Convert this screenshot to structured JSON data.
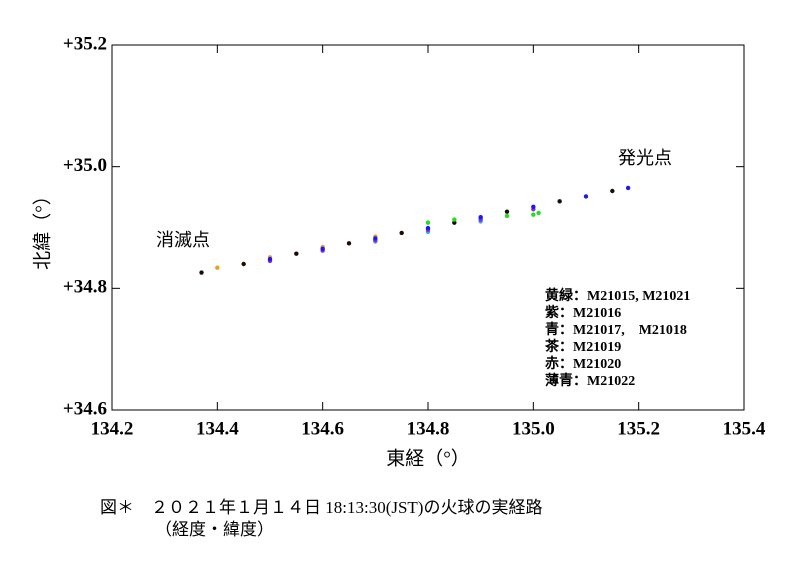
{
  "chart_data": {
    "type": "scatter",
    "xlabel": "東経（°）",
    "ylabel": "北緯（°）",
    "xlim": [
      134.2,
      135.4
    ],
    "xticks": [
      134.2,
      134.4,
      134.6,
      134.8,
      {
        "value": 135,
        "label": "135.0"
      },
      135.2,
      135.4
    ],
    "ylim": [
      34.6,
      35.2
    ],
    "yticks": [
      {
        "value": 34.6,
        "label": "+34.6"
      },
      {
        "value": 34.8,
        "label": "+34.8"
      },
      {
        "value": 35,
        "label": "+35.0"
      },
      {
        "value": 35.2,
        "label": "+35.2"
      }
    ],
    "series": [
      {
        "name": "茶：M21019",
        "color": "#1a0d05",
        "x": [
          134.37,
          134.45,
          134.55,
          134.65,
          134.75,
          134.85,
          134.95,
          135.05,
          135.15
        ],
        "y": [
          34.826,
          34.84,
          34.857,
          34.874,
          34.891,
          34.908,
          34.926,
          34.943,
          34.96
        ]
      },
      {
        "name": "赤：M21020",
        "color": "#e8a020",
        "x": [
          134.4,
          134.5,
          134.6,
          134.7
        ],
        "y": [
          34.834,
          34.851,
          34.868,
          34.885
        ]
      },
      {
        "name": "黄緑：M21015, M21021",
        "color": "#22dd22",
        "x": [
          134.8,
          134.85,
          134.9,
          134.95,
          135.0,
          135.01
        ],
        "y": [
          34.908,
          34.913,
          34.916,
          34.919,
          34.921,
          34.924
        ]
      },
      {
        "name": "薄青：M21022",
        "color": "#33aaee",
        "x": [
          134.7,
          134.8,
          134.9
        ],
        "y": [
          34.877,
          34.893,
          34.91
        ]
      },
      {
        "name": "紫：M21016",
        "color": "#8a2be2",
        "x": [
          134.5,
          134.6,
          134.7,
          134.8,
          134.9,
          135.0
        ],
        "y": [
          34.845,
          34.862,
          34.879,
          34.896,
          34.913,
          34.93
        ]
      },
      {
        "name": "青：M21017,　M21018",
        "color": "#1a1aee",
        "x": [
          134.5,
          134.6,
          134.7,
          134.8,
          134.9,
          135.0,
          135.1,
          135.18
        ],
        "y": [
          34.848,
          34.865,
          34.882,
          34.899,
          34.917,
          34.934,
          34.951,
          34.965
        ]
      }
    ],
    "legend_order": [
      2,
      4,
      5,
      0,
      1,
      3
    ],
    "annotations": [
      "発光点",
      "消滅点"
    ],
    "caption": [
      "図＊　２０２１年１月１４日 18:13:30(JST)の火球の実経路",
      "（経度・緯度）"
    ]
  }
}
